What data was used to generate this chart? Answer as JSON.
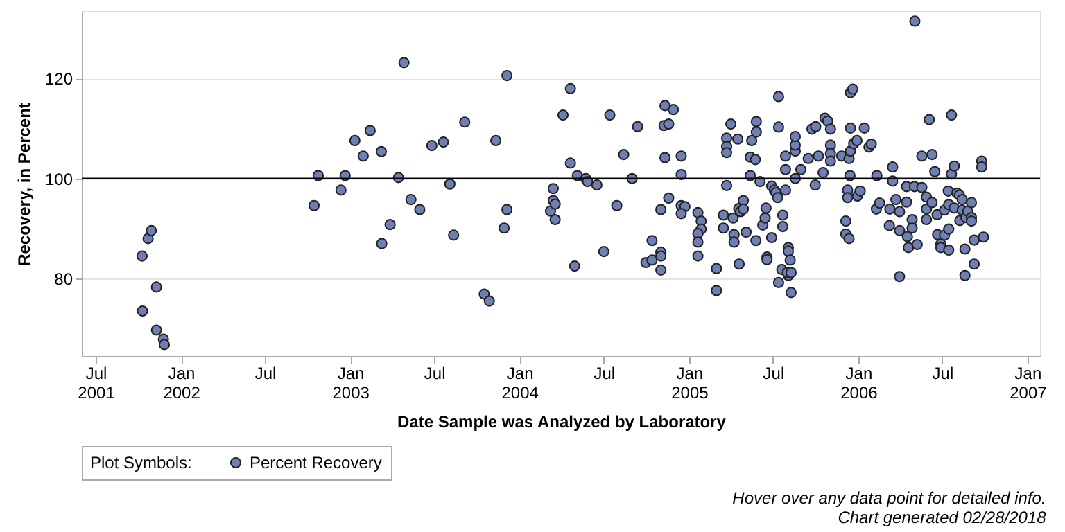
{
  "chart_data": {
    "type": "scatter",
    "xlabel": "Date Sample was Analyzed by Laboratory",
    "ylabel": "Recovery, in Percent",
    "legend_title": "Plot Symbols:",
    "legend": "bottom",
    "grid": "y",
    "marker": "circle",
    "annotations": [
      "Hover over any data point for detailed info.",
      "Chart generated 02/28/2018"
    ],
    "xlim": [
      "2001-06-01",
      "2007-01-28"
    ],
    "xticks": [
      {
        "value": "2001-07-01",
        "label": "Jul 2001"
      },
      {
        "value": "2002-01-01",
        "label": "Jan 2002"
      },
      {
        "value": "2002-07-01",
        "label": "Jul"
      },
      {
        "value": "2003-01-01",
        "label": "Jan 2003"
      },
      {
        "value": "2003-07-01",
        "label": "Jul"
      },
      {
        "value": "2004-01-01",
        "label": "Jan 2004"
      },
      {
        "value": "2004-07-01",
        "label": "Jul"
      },
      {
        "value": "2005-01-01",
        "label": "Jan 2005"
      },
      {
        "value": "2005-07-01",
        "label": "Jul"
      },
      {
        "value": "2006-01-01",
        "label": "Jan 2006"
      },
      {
        "value": "2006-07-01",
        "label": "Jul"
      },
      {
        "value": "2007-01-01",
        "label": "Jan 2007"
      }
    ],
    "ylim": [
      64.5,
      133.5
    ],
    "yticks": [
      80,
      100,
      120
    ],
    "ref_lines": [
      {
        "axis": "y",
        "value": 100,
        "color": "#000000"
      }
    ],
    "x": [
      "2001-10-09",
      "2001-10-22",
      "2001-10-29",
      "2001-11-09",
      "2001-10-10",
      "2001-11-09",
      "2001-11-24",
      "2001-11-26",
      "2002-10-15",
      "2002-10-24",
      "2002-12-12",
      "2002-12-21",
      "2003-01-11",
      "2003-01-29",
      "2003-02-13",
      "2003-03-09",
      "2003-03-10",
      "2003-03-28",
      "2003-04-15",
      "2003-04-27",
      "2003-05-12",
      "2003-05-31",
      "2003-06-26",
      "2003-07-21",
      "2003-08-04",
      "2003-08-12",
      "2003-09-05",
      "2003-10-17",
      "2003-10-28",
      "2003-11-11",
      "2003-11-29",
      "2003-12-05",
      "2003-12-05",
      "2004-03-08",
      "2004-03-14",
      "2004-03-14",
      "2004-03-18",
      "2004-03-18",
      "2004-04-04",
      "2004-04-20",
      "2004-04-20",
      "2004-04-29",
      "2004-05-05",
      "2004-05-23",
      "2004-05-27",
      "2004-06-16",
      "2004-07-01",
      "2004-07-14",
      "2004-07-29",
      "2004-08-13",
      "2004-08-31",
      "2004-09-12",
      "2004-09-30",
      "2004-10-13",
      "2004-10-13",
      "2004-11-01",
      "2004-11-01",
      "2004-11-01",
      "2004-11-01",
      "2004-11-10",
      "2004-11-28",
      "2004-11-08",
      "2004-11-18",
      "2004-11-10",
      "2004-11-18",
      "2004-12-15",
      "2004-12-15",
      "2004-12-15",
      "2004-12-23",
      "2004-12-15",
      "2005-01-20",
      "2005-01-27",
      "2005-01-27",
      "2005-01-20",
      "2005-01-20",
      "2005-01-20",
      "2005-03-01",
      "2005-03-01",
      "2005-03-16",
      "2005-03-16",
      "2005-03-23",
      "2005-03-23",
      "2005-03-23",
      "2005-03-23",
      "2005-04-01",
      "2005-04-06",
      "2005-04-08",
      "2005-04-08",
      "2005-04-16",
      "2005-04-18",
      "2005-04-22",
      "2005-04-28",
      "2005-04-28",
      "2005-04-19",
      "2005-05-04",
      "2005-05-13",
      "2005-05-16",
      "2005-05-13",
      "2005-05-24",
      "2005-05-26",
      "2005-05-26",
      "2005-05-25",
      "2005-06-03",
      "2005-06-09",
      "2005-06-14",
      "2005-06-16",
      "2005-06-18",
      "2005-06-18",
      "2005-06-28",
      "2005-06-28",
      "2005-07-04",
      "2005-07-07",
      "2005-07-11",
      "2005-07-13",
      "2005-07-13",
      "2005-07-22",
      "2005-07-22",
      "2005-07-20",
      "2005-07-28",
      "2005-07-28",
      "2005-07-28",
      "2005-08-03",
      "2005-08-03",
      "2005-08-07",
      "2005-08-03",
      "2005-08-01",
      "2005-08-09",
      "2005-07-13",
      "2005-08-09",
      "2005-08-18",
      "2005-08-18",
      "2005-08-18",
      "2005-08-18",
      "2005-08-30",
      "2005-09-15",
      "2005-09-23",
      "2005-10-01",
      "2005-09-30",
      "2005-10-07",
      "2005-10-17",
      "2005-10-21",
      "2005-10-27",
      "2005-11-02",
      "2005-11-02",
      "2005-11-02",
      "2005-11-02",
      "2005-11-26",
      "2005-12-05",
      "2005-12-05",
      "2005-12-12",
      "2005-12-09",
      "2005-12-09",
      "2005-12-14",
      "2005-12-12",
      "2005-12-15",
      "2005-12-15",
      "2005-12-15",
      "2005-12-20",
      "2005-12-22",
      "2005-12-29",
      "2005-12-30",
      "2006-01-05",
      "2006-01-14",
      "2006-01-24",
      "2006-02-09",
      "2006-01-29",
      "2006-02-10",
      "2006-03-16",
      "2006-03-16",
      "2006-03-09",
      "2006-03-10",
      "2006-02-16",
      "2006-03-23",
      "2006-03-31",
      "2006-03-31",
      "2006-03-31",
      "2006-04-15",
      "2006-04-15",
      "2006-04-17",
      "2006-04-19",
      "2006-04-27",
      "2006-04-27",
      "2006-05-03",
      "2006-05-02",
      "2006-05-08",
      "2006-05-18",
      "2006-05-18",
      "2006-05-28",
      "2006-05-28",
      "2006-05-28",
      "2006-06-03",
      "2006-06-09",
      "2006-06-09",
      "2006-06-15",
      "2006-06-20",
      "2006-06-21",
      "2006-06-28",
      "2006-06-28",
      "2006-07-06",
      "2006-07-06",
      "2006-07-15",
      "2006-07-15",
      "2006-07-15",
      "2006-07-14",
      "2006-07-21",
      "2006-07-21",
      "2006-07-27",
      "2006-07-27",
      "2006-08-02",
      "2006-08-07",
      "2006-08-08",
      "2006-08-13",
      "2006-08-13",
      "2006-08-19",
      "2006-08-19",
      "2006-08-21",
      "2006-08-25",
      "2006-09-02",
      "2006-09-02",
      "2006-09-02",
      "2006-09-08",
      "2006-09-08",
      "2006-09-24",
      "2006-09-24",
      "2006-09-28"
    ],
    "series": [
      {
        "name": "Percent Recovery",
        "color": "#6f7fb4",
        "values": [
          84.5,
          88.0,
          89.6,
          78.3,
          73.5,
          69.7,
          67.9,
          66.8,
          94.6,
          100.6,
          97.7,
          100.6,
          107.6,
          104.5,
          109.6,
          105.4,
          87.0,
          90.8,
          100.2,
          123.2,
          95.8,
          93.8,
          106.6,
          107.3,
          98.9,
          88.7,
          111.3,
          76.9,
          75.5,
          107.6,
          90.1,
          120.6,
          93.8,
          93.5,
          98.0,
          95.6,
          94.9,
          91.8,
          112.7,
          118.0,
          103.1,
          82.5,
          100.6,
          100.0,
          99.4,
          98.7,
          85.4,
          112.7,
          94.6,
          104.8,
          100.0,
          110.4,
          83.2,
          87.6,
          83.7,
          85.3,
          84.5,
          81.7,
          93.8,
          114.6,
          113.8,
          110.6,
          110.9,
          104.2,
          96.1,
          104.5,
          100.8,
          94.6,
          94.4,
          93.0,
          93.2,
          91.5,
          89.9,
          89.0,
          87.3,
          84.5,
          82.0,
          77.6,
          92.7,
          90.1,
          98.6,
          108.1,
          106.4,
          105.2,
          110.9,
          92.1,
          88.8,
          87.3,
          107.9,
          94.0,
          93.4,
          95.6,
          93.9,
          82.9,
          89.3,
          100.6,
          107.6,
          104.3,
          103.8,
          109.3,
          111.4,
          87.6,
          99.4,
          90.7,
          92.1,
          94.1,
          84.3,
          83.8,
          88.2,
          98.5,
          97.7,
          97.2,
          96.2,
          110.3,
          116.4,
          90.4,
          92.7,
          81.8,
          97.7,
          101.8,
          104.5,
          86.2,
          85.5,
          83.7,
          80.6,
          81.2,
          81.2,
          79.2,
          77.2,
          100.0,
          105.5,
          106.7,
          108.4,
          101.8,
          104.0,
          109.9,
          110.4,
          98.7,
          104.5,
          101.2,
          112.1,
          111.5,
          109.9,
          106.7,
          105.0,
          103.5,
          104.5,
          91.5,
          88.9,
          88.0,
          97.7,
          96.2,
          100.6,
          104.0,
          105.5,
          110.1,
          117.2,
          117.9,
          107.0,
          107.6,
          96.5,
          97.5,
          110.1,
          106.3,
          93.9,
          106.9,
          100.6,
          102.3,
          99.5,
          90.6,
          93.9,
          95.1,
          95.8,
          93.4,
          89.6,
          80.4,
          98.4,
          95.3,
          88.4,
          86.2,
          91.8,
          90.1,
          131.5,
          98.4,
          86.8,
          104.5,
          98.2,
          96.3,
          93.9,
          91.8,
          111.8,
          95.2,
          104.8,
          101.4,
          92.8,
          88.8,
          86.9,
          86.2,
          88.7,
          93.7,
          94.8,
          89.9,
          85.7,
          97.5,
          112.7,
          100.9,
          102.5,
          94.1,
          97.1,
          96.7,
          91.6,
          95.8,
          93.7,
          85.9,
          80.6,
          92.2,
          93.5,
          95.2,
          92.2,
          91.5,
          87.7,
          82.9,
          103.5,
          102.3,
          88.3
        ]
      }
    ]
  }
}
